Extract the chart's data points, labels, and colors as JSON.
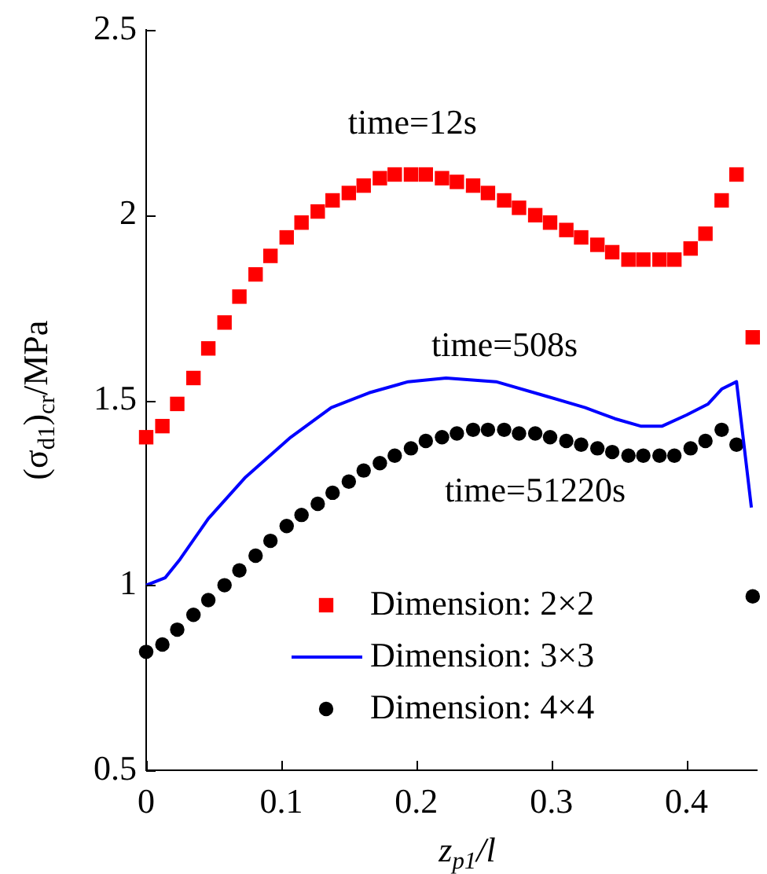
{
  "chart_data": {
    "type": "scatter",
    "xlabel": "z$_{p1}$/l",
    "ylabel": "(σ$_{d1}$)$_{cr}$/MPa",
    "x": [
      0,
      0.012,
      0.023,
      0.035,
      0.046,
      0.058,
      0.069,
      0.081,
      0.092,
      0.104,
      0.115,
      0.127,
      0.138,
      0.15,
      0.161,
      0.173,
      0.184,
      0.196,
      0.207,
      0.219,
      0.23,
      0.242,
      0.253,
      0.265,
      0.276,
      0.288,
      0.299,
      0.311,
      0.322,
      0.334,
      0.345,
      0.357,
      0.368,
      0.38,
      0.391,
      0.403,
      0.414,
      0.426,
      0.437,
      0.449
    ],
    "series": [
      {
        "name": "Dimension: 2×2",
        "type": "scatter",
        "marker": "square",
        "color": "#ff0000",
        "values": [
          1.4,
          1.43,
          1.49,
          1.56,
          1.64,
          1.71,
          1.78,
          1.84,
          1.89,
          1.94,
          1.98,
          2.01,
          2.04,
          2.06,
          2.08,
          2.1,
          2.11,
          2.11,
          2.11,
          2.1,
          2.09,
          2.08,
          2.06,
          2.04,
          2.02,
          2,
          1.98,
          1.96,
          1.94,
          1.92,
          1.9,
          1.88,
          1.88,
          1.88,
          1.88,
          1.91,
          1.95,
          2.04,
          2.11,
          1.67
        ]
      },
      {
        "name": "Dimension: 3×3",
        "type": "line",
        "marker": "none",
        "line_style": "solid",
        "color": "#0000ff",
        "x": [
          0,
          0.014,
          0.025,
          0.046,
          0.073,
          0.107,
          0.137,
          0.165,
          0.194,
          0.222,
          0.259,
          0.297,
          0.325,
          0.347,
          0.366,
          0.382,
          0.4,
          0.416,
          0.426,
          0.437,
          0.448
        ],
        "values": [
          1,
          1.02,
          1.07,
          1.18,
          1.29,
          1.4,
          1.48,
          1.52,
          1.55,
          1.56,
          1.55,
          1.51,
          1.48,
          1.45,
          1.43,
          1.43,
          1.46,
          1.49,
          1.53,
          1.55,
          1.21
        ]
      },
      {
        "name": "Dimension: 4×4",
        "type": "scatter",
        "marker": "circle",
        "color": "#000000",
        "values": [
          0.82,
          0.84,
          0.88,
          0.92,
          0.96,
          1,
          1.04,
          1.08,
          1.12,
          1.16,
          1.19,
          1.22,
          1.25,
          1.28,
          1.31,
          1.33,
          1.35,
          1.37,
          1.39,
          1.4,
          1.41,
          1.42,
          1.42,
          1.42,
          1.41,
          1.41,
          1.4,
          1.39,
          1.38,
          1.37,
          1.36,
          1.35,
          1.35,
          1.35,
          1.35,
          1.37,
          1.39,
          1.42,
          1.38,
          0.97
        ]
      }
    ],
    "xlim": [
      0,
      0.452
    ],
    "xticks": [
      0,
      0.1,
      0.2,
      0.3,
      0.4
    ],
    "ylim": [
      0.5,
      2.5
    ],
    "yticks": [
      0.5,
      1,
      1.5,
      2,
      2.5
    ],
    "grid": false,
    "legend": "bottom right",
    "annotations": [
      "time=12s",
      "time=508s",
      "time=51220s"
    ]
  }
}
